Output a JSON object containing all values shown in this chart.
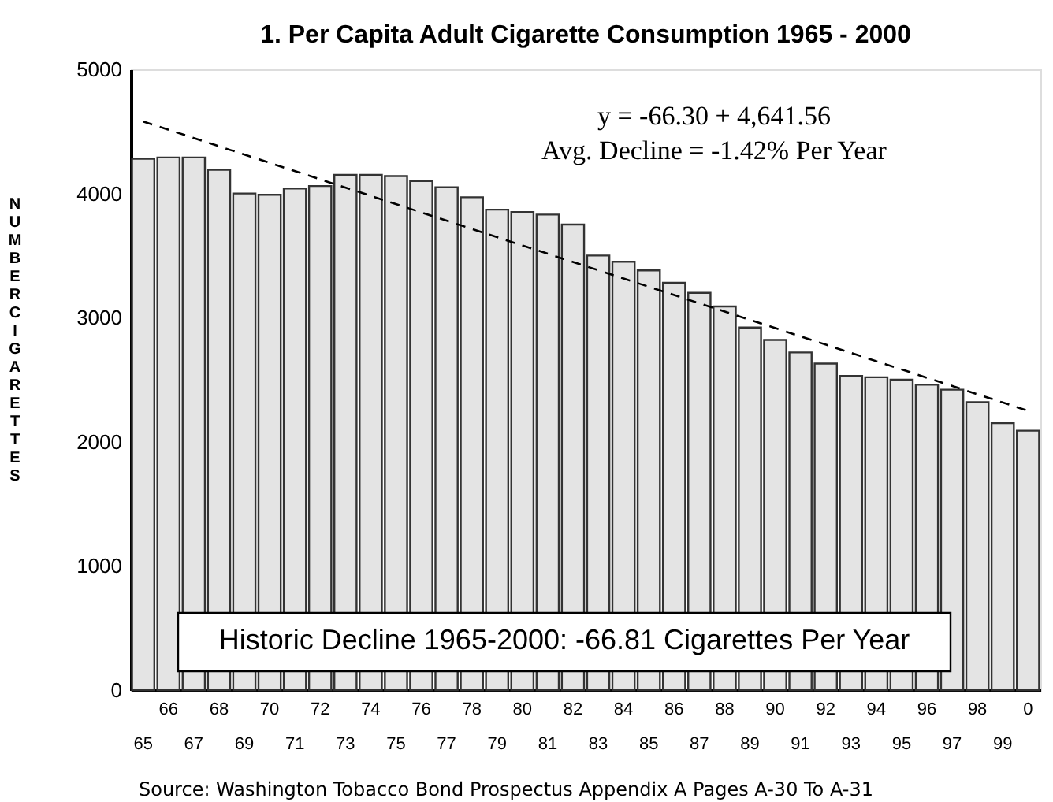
{
  "chart_data": {
    "type": "bar",
    "title": "1. Per Capita Adult Cigarette Consumption 1965 - 2000",
    "ylabel": "NUMBER CIGARETTES",
    "categories": [
      "65",
      "66",
      "67",
      "68",
      "69",
      "70",
      "71",
      "72",
      "73",
      "74",
      "75",
      "76",
      "77",
      "78",
      "79",
      "80",
      "81",
      "82",
      "83",
      "84",
      "85",
      "86",
      "87",
      "88",
      "89",
      "90",
      "91",
      "92",
      "93",
      "94",
      "95",
      "96",
      "97",
      "98",
      "99",
      "0"
    ],
    "series": [
      {
        "color": "#e4e4e4",
        "values": [
          4280,
          4290,
          4290,
          4190,
          4000,
          3990,
          4040,
          4060,
          4150,
          4150,
          4140,
          4100,
          4050,
          3970,
          3870,
          3850,
          3830,
          3750,
          3500,
          3450,
          3380,
          3280,
          3200,
          3090,
          2920,
          2820,
          2720,
          2630,
          2530,
          2520,
          2500,
          2460,
          2420,
          2320,
          2150,
          2090
        ]
      },
      {
        "type": "line",
        "color": "#000000",
        "line_style": "dashed",
        "x": [
          "65",
          "0"
        ],
        "values": [
          4580,
          2250
        ]
      }
    ],
    "ylim": [
      0,
      5000
    ],
    "yticks": [
      0,
      1000,
      2000,
      3000,
      4000,
      5000
    ],
    "grid": false,
    "annotations": [
      "y = -66.30 + 4,641.56",
      "Avg. Decline = -1.42%  Per Year",
      "Historic Decline 1965-2000: -66.81 Cigarettes Per Year",
      "Source: Washington Tobacco Bond Prospectus Appendix A Pages A-30 To A-31"
    ]
  }
}
